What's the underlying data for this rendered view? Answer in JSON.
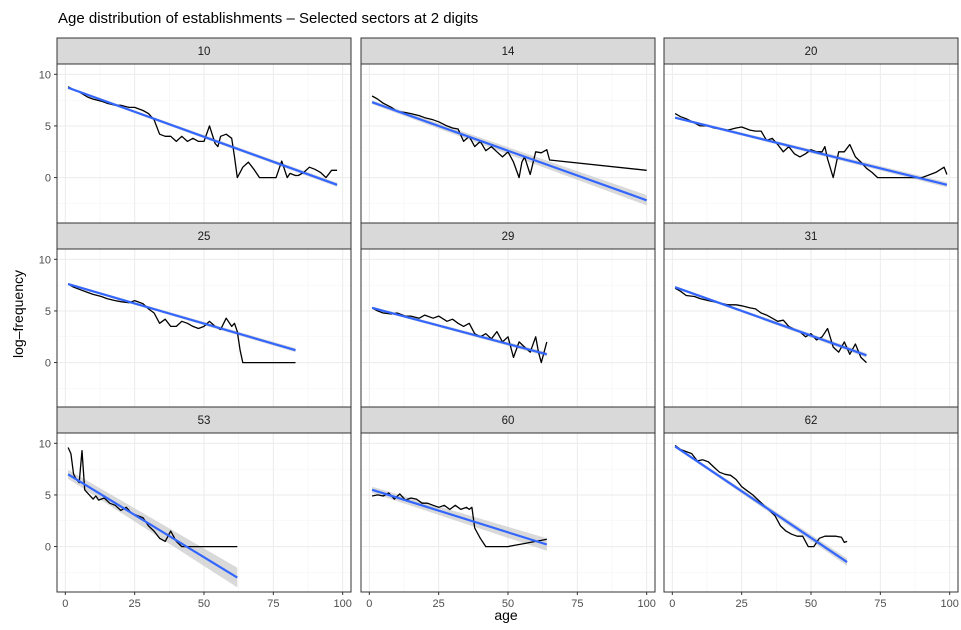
{
  "chart_data": {
    "type": "line",
    "title": "Age distribution of establishments – Selected sectors at 2 digits",
    "xlabel": "age",
    "ylabel": "log–frequency",
    "xlim": [
      -3,
      103
    ],
    "ylim": [
      -4.4,
      11
    ],
    "x_ticks": [
      0,
      25,
      50,
      75,
      100
    ],
    "x_tick_labels": [
      "0",
      "25",
      "50",
      "75",
      "100"
    ],
    "y_ticks": [
      0,
      5,
      10
    ],
    "y_tick_labels": [
      "0",
      "5",
      "10"
    ],
    "grid": true,
    "layout": "3x3 facets",
    "colors": {
      "observed": "#000000",
      "fit": "#3366ff",
      "ci_band": "#cccccc",
      "strip_fill": "#d9d9d9",
      "grid": "#ebebeb"
    },
    "series_legend": "none",
    "panels": [
      {
        "label": "10",
        "observed": {
          "x": [
            1,
            3,
            5,
            8,
            10,
            13,
            15,
            18,
            20,
            23,
            25,
            28,
            30,
            32,
            34,
            36,
            38,
            40,
            42,
            44,
            46,
            48,
            50,
            52,
            54,
            55,
            56,
            58,
            60,
            61,
            62,
            63,
            64,
            66,
            68,
            70,
            72,
            74,
            76,
            78,
            80,
            81,
            82,
            83,
            84,
            86,
            88,
            90,
            92,
            94,
            96,
            98
          ],
          "y": [
            8.8,
            8.5,
            8.3,
            7.8,
            7.6,
            7.4,
            7.2,
            7.0,
            7.0,
            6.8,
            6.8,
            6.5,
            6.2,
            5.6,
            4.2,
            4.0,
            4.0,
            3.5,
            4.0,
            3.5,
            3.8,
            3.5,
            3.5,
            5.0,
            3.3,
            3.0,
            4.0,
            4.2,
            3.8,
            2.0,
            0.0,
            0.5,
            1.0,
            1.5,
            0.8,
            0.0,
            0.0,
            0.0,
            0.0,
            1.6,
            0.0,
            0.4,
            0.3,
            0.2,
            0.2,
            0.5,
            1.0,
            0.8,
            0.5,
            0.0,
            0.7,
            0.7
          ]
        },
        "fit": {
          "x": [
            1,
            98
          ],
          "y": [
            8.7,
            -0.7
          ]
        },
        "ci_halfwidth": [
          0.12,
          0.2
        ]
      },
      {
        "label": "14",
        "observed": {
          "x": [
            1,
            3,
            5,
            8,
            10,
            13,
            15,
            18,
            20,
            23,
            25,
            28,
            30,
            32,
            34,
            36,
            38,
            40,
            42,
            44,
            46,
            48,
            50,
            52,
            54,
            55,
            56,
            58,
            60,
            62,
            64,
            65,
            100
          ],
          "y": [
            7.9,
            7.6,
            7.2,
            6.8,
            6.4,
            6.3,
            6.2,
            6.0,
            5.8,
            5.6,
            5.4,
            5.0,
            4.8,
            4.7,
            3.5,
            4.0,
            3.0,
            3.5,
            2.6,
            3.0,
            2.5,
            2.0,
            2.5,
            1.5,
            0.0,
            1.5,
            2.0,
            0.3,
            2.5,
            2.4,
            2.7,
            1.7,
            0.7
          ]
        },
        "fit": {
          "x": [
            1,
            100
          ],
          "y": [
            7.3,
            -2.2
          ]
        },
        "ci_halfwidth": [
          0.18,
          0.5
        ]
      },
      {
        "label": "20",
        "observed": {
          "x": [
            1,
            3,
            5,
            8,
            10,
            13,
            15,
            18,
            20,
            23,
            25,
            28,
            30,
            32,
            34,
            36,
            38,
            40,
            42,
            44,
            46,
            48,
            50,
            52,
            54,
            55,
            56,
            58,
            60,
            62,
            64,
            66,
            68,
            70,
            72,
            74,
            90,
            95,
            98,
            99
          ],
          "y": [
            6.2,
            5.9,
            5.7,
            5.3,
            5.0,
            5.0,
            4.8,
            4.7,
            4.6,
            4.8,
            4.9,
            4.6,
            4.5,
            4.5,
            3.6,
            3.8,
            3.2,
            2.5,
            3.0,
            2.3,
            2.0,
            2.3,
            2.7,
            2.5,
            2.5,
            3.0,
            1.8,
            0.0,
            2.5,
            2.5,
            3.2,
            2.0,
            1.5,
            0.9,
            0.5,
            0.0,
            0.0,
            0.5,
            1.0,
            0.3
          ]
        },
        "fit": {
          "x": [
            1,
            99
          ],
          "y": [
            5.8,
            -0.7
          ]
        },
        "ci_halfwidth": [
          0.12,
          0.25
        ]
      },
      {
        "label": "25",
        "observed": {
          "x": [
            1,
            3,
            5,
            8,
            10,
            13,
            15,
            18,
            20,
            23,
            25,
            28,
            30,
            32,
            34,
            36,
            38,
            40,
            42,
            44,
            46,
            48,
            50,
            52,
            54,
            56,
            58,
            60,
            61,
            62,
            63,
            64,
            83
          ],
          "y": [
            7.6,
            7.3,
            7.1,
            6.8,
            6.6,
            6.4,
            6.2,
            6.0,
            5.9,
            5.8,
            6.0,
            5.7,
            5.2,
            4.8,
            3.8,
            4.2,
            3.5,
            3.5,
            4.0,
            3.8,
            3.5,
            3.3,
            3.5,
            4.0,
            3.5,
            3.2,
            4.3,
            3.5,
            3.8,
            3.0,
            1.2,
            0.0,
            0.0
          ]
        },
        "fit": {
          "x": [
            1,
            83
          ],
          "y": [
            7.6,
            1.2
          ]
        },
        "ci_halfwidth": [
          0.12,
          0.2
        ]
      },
      {
        "label": "29",
        "observed": {
          "x": [
            1,
            3,
            5,
            8,
            10,
            13,
            15,
            18,
            20,
            23,
            25,
            28,
            30,
            32,
            34,
            36,
            38,
            40,
            42,
            44,
            46,
            48,
            50,
            52,
            54,
            56,
            58,
            60,
            61,
            62,
            64
          ],
          "y": [
            5.3,
            5.0,
            4.8,
            4.7,
            4.8,
            4.5,
            4.5,
            4.3,
            4.6,
            4.3,
            4.5,
            4.0,
            4.2,
            3.8,
            3.5,
            3.8,
            2.8,
            2.5,
            2.8,
            2.3,
            3.0,
            2.0,
            2.5,
            0.5,
            2.0,
            1.5,
            1.0,
            2.5,
            1.0,
            0.0,
            2.0
          ]
        },
        "fit": {
          "x": [
            1,
            64
          ],
          "y": [
            5.3,
            0.8
          ]
        },
        "ci_halfwidth": [
          0.12,
          0.2
        ]
      },
      {
        "label": "31",
        "observed": {
          "x": [
            1,
            3,
            5,
            8,
            10,
            13,
            15,
            18,
            20,
            23,
            25,
            28,
            30,
            32,
            34,
            36,
            38,
            40,
            42,
            44,
            46,
            48,
            50,
            52,
            54,
            56,
            58,
            60,
            62,
            64,
            66,
            68,
            70
          ],
          "y": [
            7.2,
            6.9,
            6.5,
            6.4,
            6.2,
            6.0,
            5.9,
            5.7,
            5.6,
            5.6,
            5.5,
            5.3,
            5.2,
            4.8,
            4.6,
            4.3,
            4.0,
            4.1,
            3.5,
            3.2,
            3.0,
            2.5,
            2.8,
            2.2,
            2.5,
            3.3,
            1.5,
            1.0,
            2.0,
            0.8,
            1.8,
            0.5,
            0.0
          ]
        },
        "fit": {
          "x": [
            1,
            70
          ],
          "y": [
            7.3,
            0.7
          ]
        },
        "ci_halfwidth": [
          0.12,
          0.22
        ]
      },
      {
        "label": "53",
        "observed": {
          "x": [
            1,
            2,
            3,
            4,
            5,
            6,
            7,
            8,
            10,
            11,
            12,
            14,
            16,
            18,
            20,
            22,
            24,
            26,
            28,
            30,
            32,
            34,
            36,
            38,
            40,
            42,
            44,
            62
          ],
          "y": [
            9.6,
            9.0,
            7.0,
            6.5,
            6.2,
            9.3,
            5.5,
            5.2,
            4.6,
            4.9,
            4.5,
            4.7,
            4.2,
            4.0,
            3.5,
            3.8,
            3.2,
            3.0,
            2.8,
            2.0,
            1.5,
            0.8,
            0.5,
            1.5,
            0.5,
            0.0,
            0.0,
            0.0
          ]
        },
        "fit": {
          "x": [
            1,
            62
          ],
          "y": [
            7.0,
            -3.0
          ]
        },
        "ci_halfwidth": [
          0.45,
          0.95
        ]
      },
      {
        "label": "60",
        "observed": {
          "x": [
            1,
            3,
            5,
            7,
            9,
            11,
            13,
            15,
            17,
            19,
            21,
            23,
            25,
            27,
            29,
            31,
            33,
            35,
            36,
            37,
            38,
            40,
            42,
            44,
            46,
            48,
            50,
            52,
            54,
            56,
            58,
            60,
            62,
            64
          ],
          "y": [
            4.9,
            5.0,
            4.9,
            5.2,
            4.6,
            5.1,
            4.5,
            4.7,
            4.6,
            4.2,
            4.2,
            4.0,
            3.8,
            4.0,
            3.6,
            4.0,
            3.6,
            3.8,
            3.6,
            3.8,
            1.8,
            0.8,
            0.0,
            0.0,
            0.0,
            0.0,
            0.0,
            0.1,
            0.2,
            0.3,
            0.4,
            0.5,
            0.6,
            0.7
          ]
        },
        "fit": {
          "x": [
            1,
            64
          ],
          "y": [
            5.5,
            0.2
          ]
        },
        "ci_halfwidth": [
          0.3,
          0.6
        ]
      },
      {
        "label": "62",
        "observed": {
          "x": [
            1,
            3,
            5,
            7,
            9,
            11,
            13,
            15,
            17,
            19,
            21,
            23,
            25,
            27,
            29,
            31,
            33,
            35,
            37,
            39,
            41,
            43,
            45,
            47,
            49,
            51,
            53,
            55,
            57,
            59,
            61,
            62,
            63
          ],
          "y": [
            9.8,
            9.4,
            9.2,
            9.0,
            8.3,
            8.4,
            8.2,
            7.7,
            7.2,
            7.0,
            6.9,
            6.5,
            5.8,
            5.4,
            5.0,
            4.5,
            4.0,
            3.5,
            3.0,
            2.0,
            1.5,
            1.2,
            1.0,
            1.0,
            0.0,
            0.0,
            0.8,
            1.0,
            1.0,
            1.0,
            0.9,
            0.4,
            0.5
          ]
        },
        "fit": {
          "x": [
            1,
            63
          ],
          "y": [
            9.7,
            -1.5
          ]
        },
        "ci_halfwidth": [
          0.12,
          0.35
        ]
      }
    ]
  }
}
